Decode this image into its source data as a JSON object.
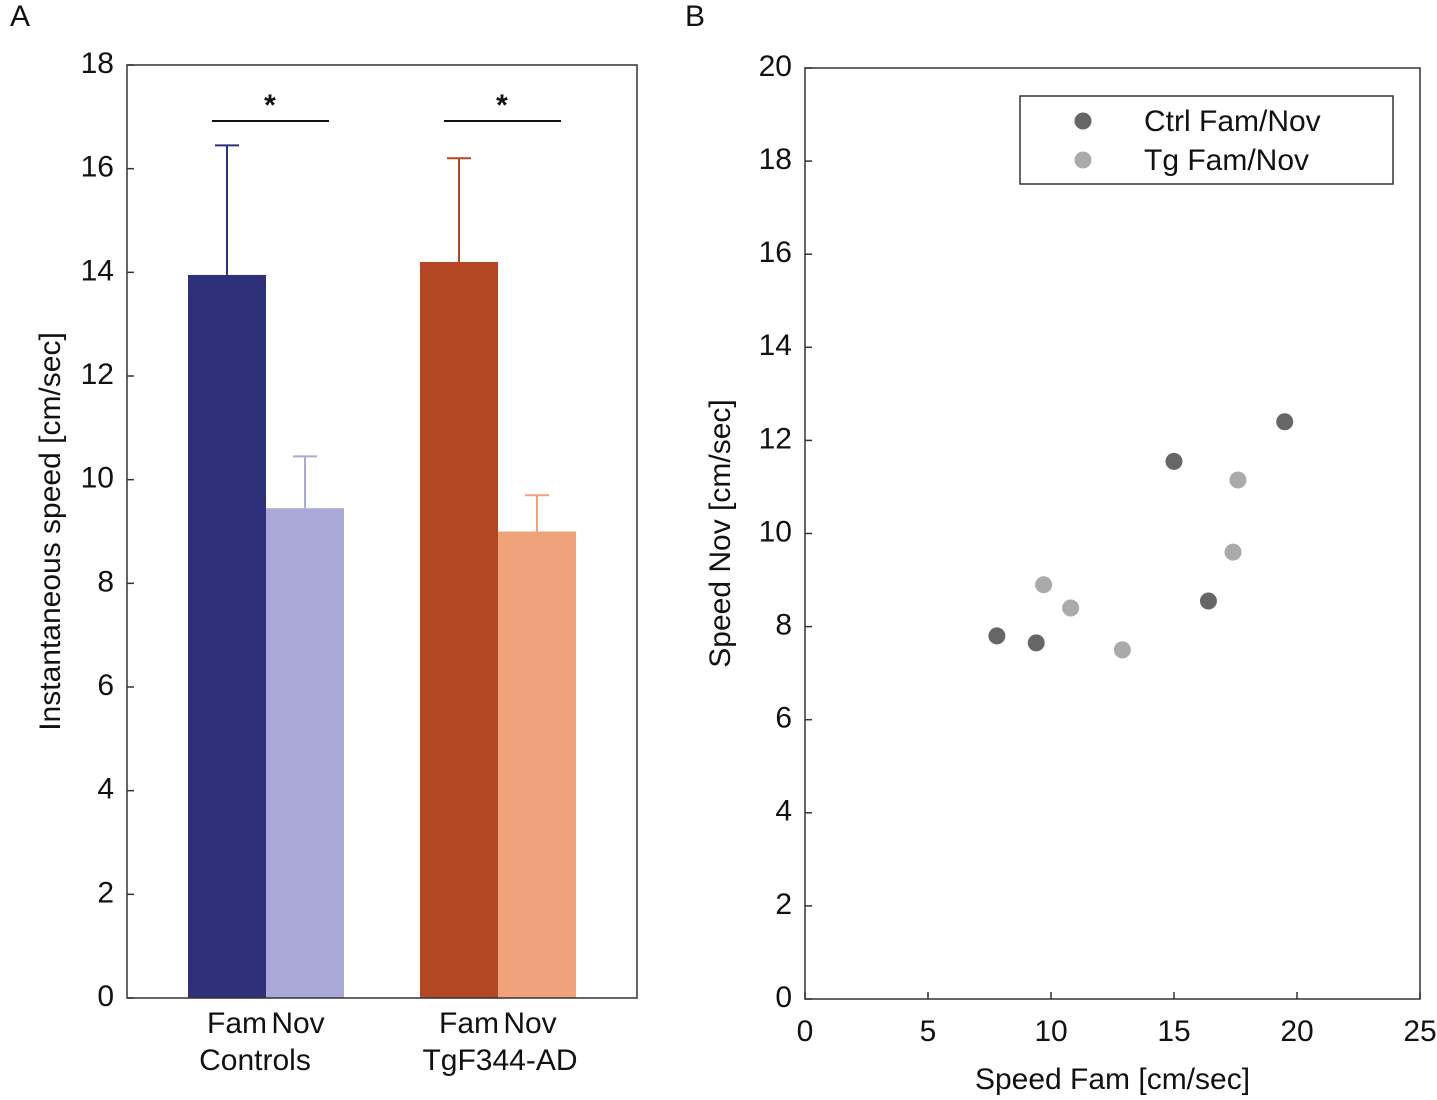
{
  "chart_data": [
    {
      "type": "bar",
      "panel_label": "A",
      "y_label": "Instantaneous speed [cm/sec]",
      "categories": [
        "Controls",
        "TgF344-AD"
      ],
      "series": [
        {
          "name": "Fam",
          "colors": [
            "#2e3179",
            "#b34724"
          ],
          "values": [
            13.95,
            14.2
          ],
          "errors": [
            2.5,
            2.0
          ]
        },
        {
          "name": "Nov",
          "colors": [
            "#aaa8d6",
            "#f0a27b"
          ],
          "values": [
            9.45,
            9.0
          ],
          "errors": [
            1.0,
            0.7
          ]
        }
      ],
      "annotations": [
        "*",
        "*"
      ],
      "ylim": [
        0,
        18
      ],
      "yticks": [
        0,
        2,
        4,
        6,
        8,
        10,
        12,
        14,
        16,
        18
      ]
    },
    {
      "type": "scatter",
      "panel_label": "B",
      "x_label": "Speed Fam [cm/sec]",
      "y_label": "Speed Nov [cm/sec]",
      "series": [
        {
          "name": "Ctrl Fam/Nov",
          "color": "#666666",
          "x": [
            7.8,
            9.4,
            15.0,
            16.4,
            19.5
          ],
          "values": [
            7.8,
            7.65,
            11.55,
            8.55,
            12.4
          ]
        },
        {
          "name": "Tg Fam/Nov",
          "color": "#aaaaaa",
          "x": [
            9.7,
            10.8,
            12.9,
            17.4,
            17.6
          ],
          "values": [
            8.9,
            8.4,
            7.5,
            9.6,
            11.15
          ]
        }
      ],
      "legend": "upper right",
      "xlim": [
        0,
        25
      ],
      "xticks": [
        0,
        5,
        10,
        15,
        20,
        25
      ],
      "ylim": [
        0,
        20
      ],
      "yticks": [
        0,
        2,
        4,
        6,
        8,
        10,
        12,
        14,
        16,
        18,
        20
      ]
    }
  ]
}
